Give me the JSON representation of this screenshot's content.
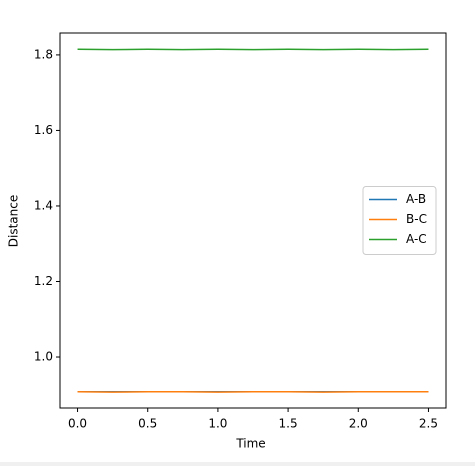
{
  "chart_data": {
    "type": "line",
    "x_label": "Time",
    "y_label": "Distance",
    "x": [
      0,
      0.25,
      0.5,
      0.75,
      1.0,
      1.25,
      1.5,
      1.75,
      2.0,
      2.25,
      2.5
    ],
    "series": [
      {
        "name": "A-B",
        "color": "#1f77b4",
        "values": [
          0.908,
          0.908,
          0.908,
          0.908,
          0.908,
          0.908,
          0.908,
          0.908,
          0.908,
          0.908,
          0.908
        ]
      },
      {
        "name": "B-C",
        "color": "#ff7f0e",
        "values": [
          0.908,
          0.907,
          0.908,
          0.908,
          0.907,
          0.908,
          0.908,
          0.907,
          0.908,
          0.908,
          0.908
        ]
      },
      {
        "name": "A-C",
        "color": "#2ca02c",
        "values": [
          1.815,
          1.814,
          1.815,
          1.814,
          1.815,
          1.814,
          1.815,
          1.814,
          1.815,
          1.814,
          1.815
        ]
      }
    ],
    "xlim": [
      -0.125,
      2.625
    ],
    "ylim": [
      0.865,
      1.858
    ],
    "xticks": [
      {
        "value": 0,
        "label": "0.0"
      },
      0.5,
      {
        "value": 1,
        "label": "1.0"
      },
      1.5,
      {
        "value": 2,
        "label": "2.0"
      },
      2.5
    ],
    "yticks": [
      {
        "value": 1,
        "label": "1.0"
      },
      1.2,
      1.4,
      1.6,
      1.8
    ],
    "legend": "center right",
    "grid": false
  }
}
